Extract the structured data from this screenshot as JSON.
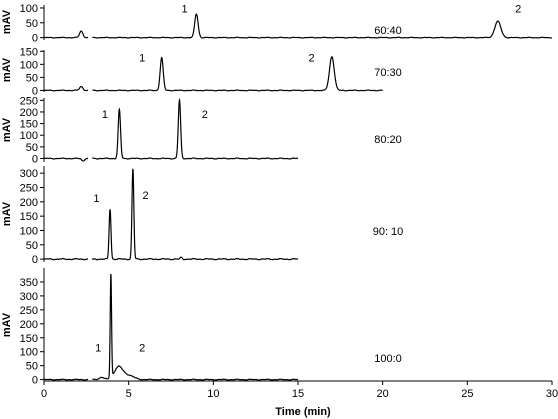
{
  "chart_data": {
    "type": "line",
    "x_axis": {
      "label": "Time (min)",
      "ticks": [
        0,
        5,
        10,
        15,
        20,
        25,
        30
      ],
      "range": [
        0,
        30
      ]
    },
    "panels": [
      {
        "condition": "60:40",
        "ylabel": "mAV",
        "ylim": [
          -8,
          110
        ],
        "yticks": [
          0,
          50,
          100
        ],
        "x_end": 30,
        "noise": 1.2,
        "gap": [
          2.6,
          2.85
        ],
        "peaks": [
          {
            "t": 2.2,
            "h": 22,
            "w": 0.1,
            "label": ""
          },
          {
            "t": 9.0,
            "h": 80,
            "w": 0.1,
            "label": "1",
            "label_x": 8.3,
            "label_y": 85
          },
          {
            "t": 26.8,
            "h": 55,
            "w": 0.18,
            "label": "2",
            "label_x": 28.0,
            "label_y": 85
          }
        ],
        "dips": [
          {
            "t": 2.75,
            "h": -6,
            "w": 0.05
          }
        ]
      },
      {
        "condition": "70:30",
        "ylabel": "mAV",
        "ylim": [
          -6,
          155
        ],
        "yticks": [
          0,
          50,
          100,
          150
        ],
        "x_end": 20,
        "noise": 1.5,
        "gap": [
          2.6,
          2.85
        ],
        "peaks": [
          {
            "t": 2.2,
            "h": 15,
            "w": 0.1,
            "label": ""
          },
          {
            "t": 6.95,
            "h": 125,
            "w": 0.09,
            "label": "1",
            "label_x": 5.8,
            "label_y": 110
          },
          {
            "t": 17.0,
            "h": 130,
            "w": 0.14,
            "label": "2",
            "label_x": 15.8,
            "label_y": 110
          }
        ],
        "dips": [
          {
            "t": 2.75,
            "h": -5,
            "w": 0.05
          }
        ]
      },
      {
        "condition": "80:20",
        "ylabel": "mAV",
        "ylim": [
          -15,
          260
        ],
        "yticks": [
          0,
          50,
          100,
          150,
          200,
          250
        ],
        "x_end": 15,
        "noise": 2,
        "gap": [
          2.6,
          2.85
        ],
        "peaks": [
          {
            "t": 2.3,
            "h": -10,
            "w": 0.08,
            "label": ""
          },
          {
            "t": 4.45,
            "h": 210,
            "w": 0.07,
            "label": "1",
            "label_x": 3.6,
            "label_y": 175
          },
          {
            "t": 8.0,
            "h": 250,
            "w": 0.07,
            "label": "2",
            "label_x": 9.5,
            "label_y": 175
          }
        ],
        "dips": [
          {
            "t": 2.75,
            "h": -8,
            "w": 0.05
          }
        ]
      },
      {
        "condition": "90: 10",
        "ylabel": "mAV",
        "ylim": [
          -10,
          325
        ],
        "yticks": [
          0,
          50,
          100,
          150,
          200,
          250,
          300
        ],
        "x_end": 15,
        "noise": 2,
        "gap": [
          2.6,
          2.85
        ],
        "peaks": [
          {
            "t": 3.9,
            "h": 175,
            "w": 0.055,
            "label": "1",
            "label_x": 3.1,
            "label_y": 200
          },
          {
            "t": 5.25,
            "h": 315,
            "w": 0.055,
            "label": "2",
            "label_x": 6.0,
            "label_y": 210
          },
          {
            "t": 8.1,
            "h": 6,
            "w": 0.05,
            "label": ""
          }
        ],
        "dips": [
          {
            "t": 2.8,
            "h": -6,
            "w": 0.05
          }
        ]
      },
      {
        "condition": "100:0",
        "ylabel": "mAV",
        "ylim": [
          -5,
          400
        ],
        "yticks": [
          0,
          50,
          100,
          150,
          200,
          250,
          300,
          350
        ],
        "x_end": 15,
        "noise": 1.5,
        "gap": [
          2.6,
          2.85
        ],
        "peaks": [
          {
            "t": 3.4,
            "h": 8,
            "w": 0.15,
            "label": ""
          },
          {
            "t": 3.95,
            "h": 370,
            "w": 0.04,
            "label": "1",
            "label_x": 3.2,
            "label_y": 100
          },
          {
            "t": 4.4,
            "h": 45,
            "w": 0.25,
            "label": "2",
            "label_x": 5.8,
            "label_y": 100
          },
          {
            "t": 5.0,
            "h": 15,
            "w": 0.3,
            "label": ""
          }
        ],
        "dips": []
      }
    ]
  }
}
